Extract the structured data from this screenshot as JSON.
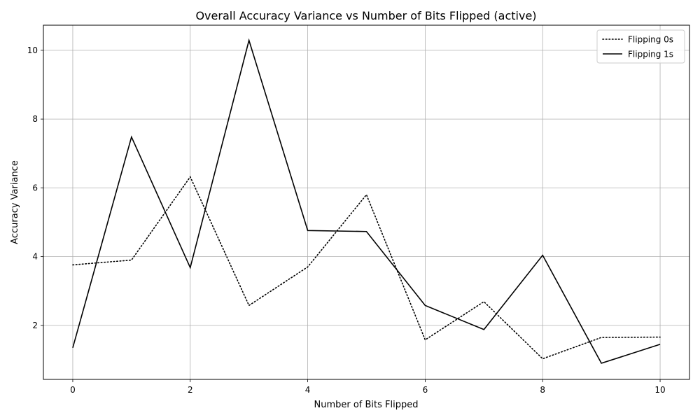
{
  "chart_data": {
    "type": "line",
    "title": "Overall Accuracy Variance vs Number of Bits Flipped (active)",
    "xlabel": "Number of Bits Flipped",
    "ylabel": "Accuracy Variance",
    "x": [
      0,
      1,
      2,
      3,
      4,
      5,
      6,
      7,
      8,
      9,
      10
    ],
    "xlim": [
      -0.5,
      10.5
    ],
    "ylim": [
      0.43,
      10.73
    ],
    "xticks": [
      0,
      2,
      4,
      6,
      8,
      10
    ],
    "yticks": [
      2,
      4,
      6,
      8,
      10
    ],
    "grid": true,
    "legend_position": "top-right",
    "series": [
      {
        "name": "Flipping 0s",
        "style": "dotted",
        "color": "#000000",
        "values": [
          3.76,
          3.9,
          6.32,
          2.58,
          3.7,
          5.8,
          1.58,
          2.69,
          1.03,
          1.65,
          1.66
        ]
      },
      {
        "name": "Flipping 1s",
        "style": "solid",
        "color": "#000000",
        "values": [
          1.35,
          7.48,
          3.68,
          10.29,
          4.76,
          4.73,
          2.58,
          1.88,
          4.04,
          0.9,
          1.45
        ]
      }
    ]
  }
}
